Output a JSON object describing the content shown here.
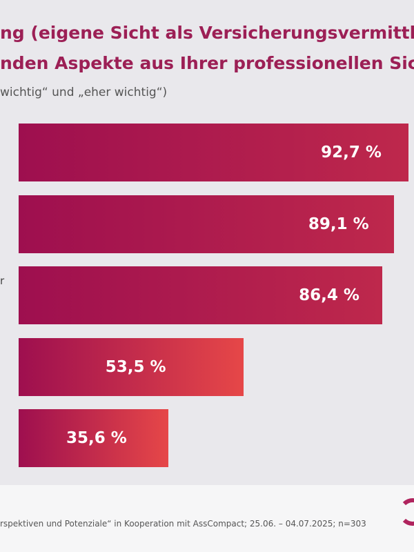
{
  "header": {
    "title_line1": "ng (eigene Sicht als Versicherungsvermittle",
    "title_line2": "nden Aspekte aus Ihrer professionellen Sic",
    "subtitle": "wichtig“ und „eher wichtig“)"
  },
  "row_label_fragment": "r",
  "chart_data": {
    "type": "bar",
    "orientation": "horizontal",
    "categories": [
      "",
      "",
      "",
      "",
      ""
    ],
    "values": [
      92.7,
      89.1,
      86.4,
      53.5,
      35.6
    ],
    "value_labels": [
      "92,7 %",
      "89,1 %",
      "86,4 %",
      "53,5 %",
      "35,6 %"
    ],
    "unit": "%",
    "xlim": [
      0,
      100
    ],
    "grid": false,
    "colors": {
      "start": "#9e0f4f",
      "end": "#e64748"
    }
  },
  "footer": {
    "source": "rspektiven und Potenziale“ in Kooperation mit AssCompact; 25.06. – 04.07.2025; n=303"
  },
  "colors": {
    "title": "#9c1f55",
    "background": "#e9e8ec"
  }
}
